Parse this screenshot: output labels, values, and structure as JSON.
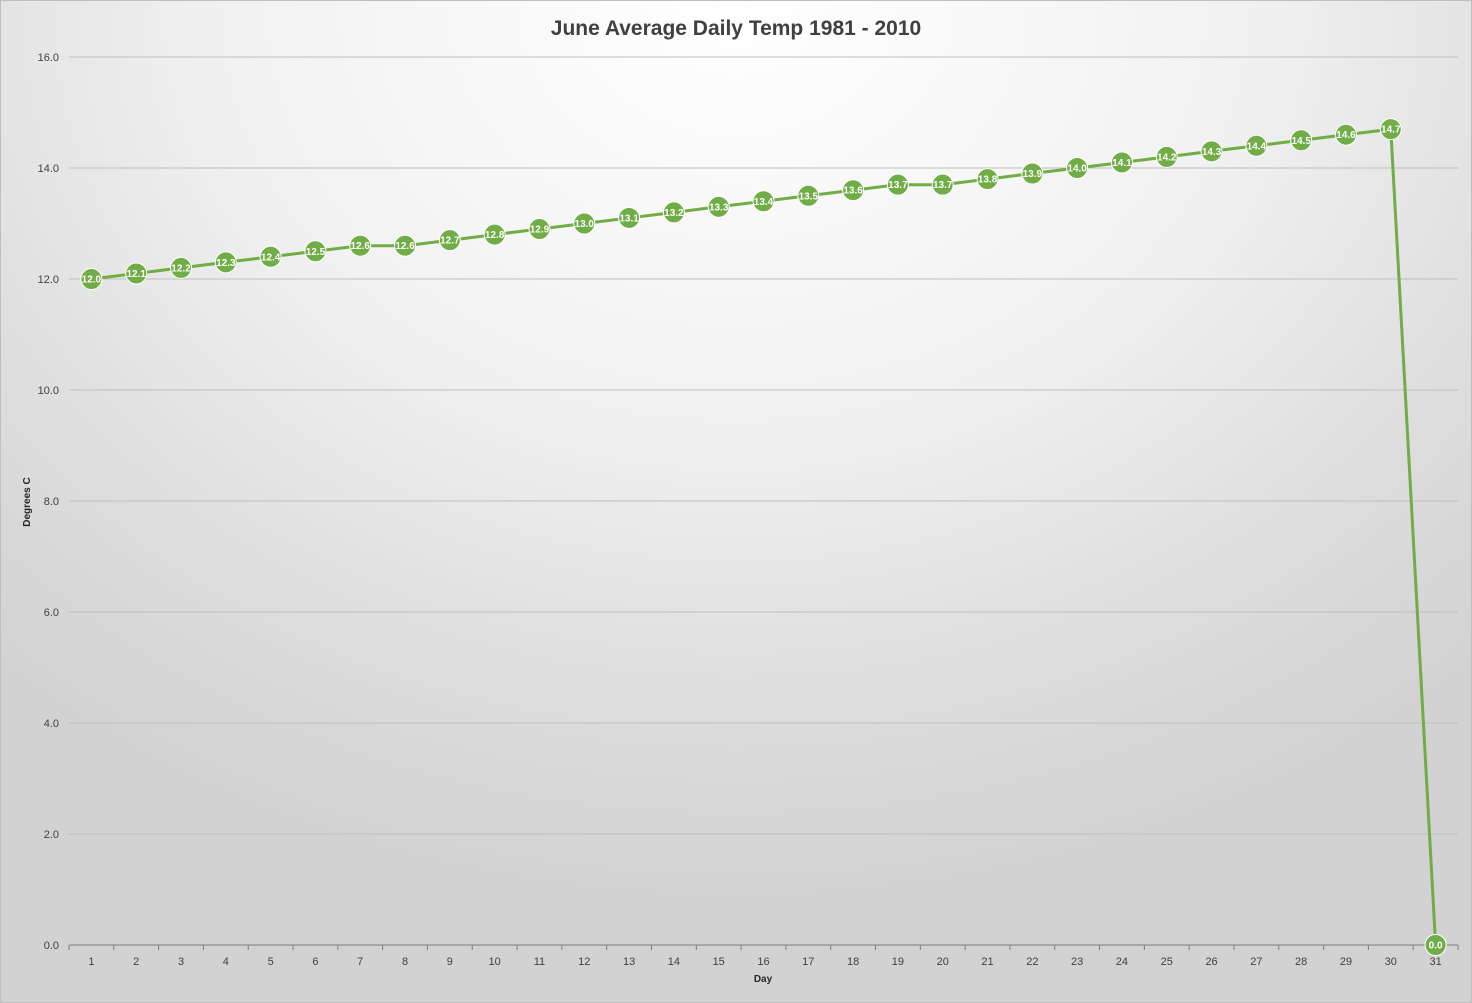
{
  "chart_data": {
    "type": "line",
    "title": "June Average Daily Temp 1981 - 2010",
    "xlabel": "Day",
    "ylabel": "Degrees C",
    "categories": [
      "1",
      "2",
      "3",
      "4",
      "5",
      "6",
      "7",
      "8",
      "9",
      "10",
      "11",
      "12",
      "13",
      "14",
      "15",
      "16",
      "17",
      "18",
      "19",
      "20",
      "21",
      "22",
      "23",
      "24",
      "25",
      "26",
      "27",
      "28",
      "29",
      "30",
      "31"
    ],
    "series": [
      {
        "values": [
          12.0,
          12.1,
          12.2,
          12.3,
          12.4,
          12.5,
          12.6,
          12.6,
          12.7,
          12.8,
          12.9,
          13.0,
          13.1,
          13.2,
          13.3,
          13.4,
          13.5,
          13.6,
          13.7,
          13.7,
          13.8,
          13.9,
          14.0,
          14.1,
          14.2,
          14.3,
          14.4,
          14.5,
          14.6,
          14.7,
          0.0
        ],
        "data_labels": [
          "12.0",
          "12.1",
          "12.2",
          "12.3",
          "12.4",
          "12.5",
          "12.6",
          "12.6",
          "12.7",
          "12.8",
          "12.9",
          "13.0",
          "13.1",
          "13.2",
          "13.3",
          "13.4",
          "13.5",
          "13.6",
          "13.7",
          "13.7",
          "13.8",
          "13.9",
          "14.0",
          "14.1",
          "14.2",
          "14.3",
          "14.4",
          "14.5",
          "14.6",
          "14.7",
          "0.0"
        ],
        "color": "#70ad47"
      }
    ],
    "ylim": [
      0,
      16
    ],
    "yticks": [
      "0.0",
      "2.0",
      "4.0",
      "6.0",
      "8.0",
      "10.0",
      "12.0",
      "14.0",
      "16.0"
    ],
    "grid": true,
    "legend": "none"
  }
}
